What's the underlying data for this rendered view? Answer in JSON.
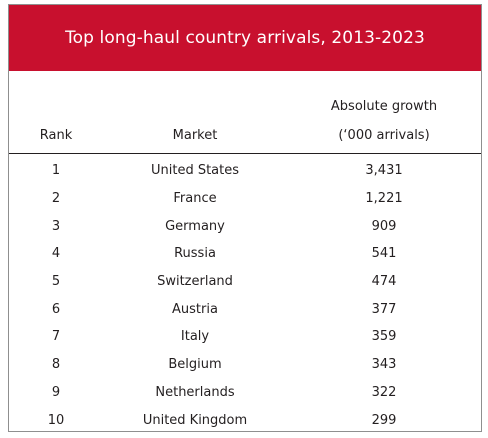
{
  "title": "Top long-haul country arrivals, 2013-2023",
  "headers": {
    "rank": "Rank",
    "market": "Market",
    "growth_line1": "Absolute growth",
    "growth_line2": "(‘000 arrivals)"
  },
  "rows": [
    {
      "rank": "1",
      "market": "United States",
      "growth": "3,431"
    },
    {
      "rank": "2",
      "market": "France",
      "growth": "1,221"
    },
    {
      "rank": "3",
      "market": "Germany",
      "growth": "909"
    },
    {
      "rank": "4",
      "market": "Russia",
      "growth": "541"
    },
    {
      "rank": "5",
      "market": "Switzerland",
      "growth": "474"
    },
    {
      "rank": "6",
      "market": "Austria",
      "growth": "377"
    },
    {
      "rank": "7",
      "market": "Italy",
      "growth": "359"
    },
    {
      "rank": "8",
      "market": "Belgium",
      "growth": "343"
    },
    {
      "rank": "9",
      "market": "Netherlands",
      "growth": "322"
    },
    {
      "rank": "10",
      "market": "United Kingdom",
      "growth": "299"
    }
  ],
  "colors": {
    "title_bar": "#c8102e",
    "title_text": "#ffffff",
    "body_text": "#231f20"
  }
}
